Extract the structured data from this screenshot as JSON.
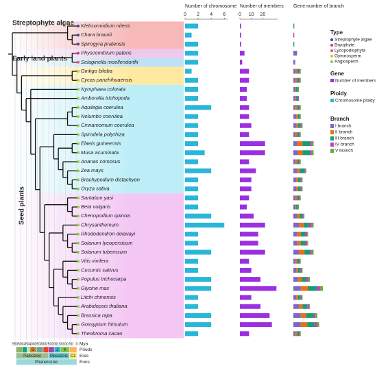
{
  "groups": [
    "Streptophyte algae",
    "Early land plants",
    "Seed plants"
  ],
  "type_legend": {
    "title": "Type",
    "items": [
      {
        "name": "Streptophyte algae",
        "color": "#3f3fa0"
      },
      {
        "name": "Bryophyte",
        "color": "#c0389c"
      },
      {
        "name": "Lycopodiophyta",
        "color": "#e8547a"
      },
      {
        "name": "Gymnosperm",
        "color": "#c8c828"
      },
      {
        "name": "Angiosperm",
        "color": "#8ccc3c"
      }
    ]
  },
  "species_type": [
    0,
    0,
    0,
    1,
    2,
    3,
    3,
    4,
    4,
    4,
    4,
    4,
    4,
    4,
    4,
    4,
    4,
    4,
    4,
    4,
    4,
    4,
    4,
    4,
    4,
    4,
    4,
    4,
    4,
    4,
    4,
    4,
    4,
    4,
    4
  ],
  "chart_data": [
    {
      "type": "bar",
      "title": "Number of chromosome",
      "legend_title": "Ploidy",
      "legend_label": "Chromosome ploidy",
      "color": "#29b6d8",
      "categories": [
        "Klebsormidium nitens",
        "Chara braunii",
        "Spirogyra pratensis",
        "Physcomitrium patens",
        "Selaginella moellendorffii",
        "Ginkgo biloba",
        "Cycas panzhihuaensis",
        "Nymphaea colorata",
        "Amborella trichopoda",
        "Aquilegia coerulea",
        "Nelumbo coerulea",
        "Cinnamomum coerulea",
        "Spirodela polyrhiza",
        "Elaeis guineensis",
        "Musa acuminata",
        "Ananas comosus",
        "Zea mays",
        "Brachypodium distachyon",
        "Oryza sativa",
        "Santalum yasi",
        "Beta vulgaris",
        "Chenopodium quinoa",
        "Chrysanthemum",
        "Rhododendron delavayi",
        "Solanum lycopersicum",
        "Solanum tuberosum",
        "Vitis vinifera",
        "Cucumis sativus",
        "Populus trichocarpa",
        "Glycine max",
        "Litchi chinensis",
        "Arabidopsis thaliana",
        "Brassica rapa",
        "Gossypium hirsutum",
        "Theobroma cacao"
      ],
      "values": [
        2,
        1,
        2,
        2,
        2,
        1,
        2,
        2,
        2,
        4,
        2,
        2,
        2,
        2,
        3,
        2,
        4,
        2,
        2,
        2,
        2,
        4,
        6,
        2,
        2,
        4,
        2,
        2,
        4,
        4,
        2,
        2,
        4,
        4,
        2
      ],
      "xlim": [
        0,
        6.5
      ],
      "xticks": [
        0,
        2,
        4,
        6
      ]
    },
    {
      "type": "bar",
      "title": "Number of members",
      "legend_title": "Gene",
      "legend_label": "Number of members",
      "color": "#9b30e0",
      "values": [
        1,
        1,
        1,
        4,
        2,
        8,
        8,
        6,
        6,
        8,
        8,
        10,
        8,
        22,
        22,
        8,
        14,
        10,
        10,
        8,
        6,
        12,
        22,
        16,
        16,
        22,
        8,
        10,
        18,
        32,
        10,
        18,
        26,
        28,
        8
      ],
      "xlim": [
        0,
        33
      ],
      "xticks": [
        0,
        10,
        20
      ]
    },
    {
      "type": "stacked_bar",
      "title": "Gene number of branch",
      "legend_title": "Branch",
      "xlim": [
        0,
        35
      ],
      "series": [
        {
          "name": "I branch",
          "color": "#7b68c8",
          "values": [
            0,
            0,
            0,
            4,
            2,
            2,
            2,
            2,
            2,
            2,
            3,
            3,
            2,
            4,
            5,
            2,
            4,
            3,
            3,
            2,
            2,
            4,
            6,
            4,
            4,
            6,
            2,
            3,
            5,
            8,
            3,
            6,
            8,
            8,
            2
          ]
        },
        {
          "name": "II branch",
          "color": "#e8701a",
          "values": [
            0,
            0,
            0,
            0,
            0,
            2,
            2,
            1,
            1,
            2,
            2,
            2,
            2,
            6,
            5,
            2,
            3,
            2,
            2,
            2,
            1,
            3,
            5,
            4,
            4,
            6,
            2,
            2,
            4,
            8,
            2,
            4,
            6,
            7,
            2
          ]
        },
        {
          "name": "III branch",
          "color": "#1a9c72",
          "values": [
            1,
            0,
            1,
            0,
            0,
            2,
            2,
            2,
            2,
            2,
            2,
            3,
            2,
            8,
            8,
            2,
            5,
            3,
            3,
            2,
            2,
            3,
            6,
            5,
            5,
            6,
            2,
            3,
            5,
            10,
            3,
            5,
            8,
            8,
            2
          ]
        },
        {
          "name": "IV branch",
          "color": "#c040c0",
          "values": [
            0,
            1,
            0,
            0,
            0,
            1,
            1,
            0,
            1,
            1,
            0,
            1,
            1,
            2,
            2,
            1,
            1,
            1,
            1,
            1,
            0,
            1,
            3,
            2,
            2,
            2,
            1,
            1,
            2,
            3,
            1,
            2,
            2,
            3,
            1
          ]
        },
        {
          "name": "V branch",
          "color": "#6aaa3a",
          "values": [
            0,
            0,
            0,
            0,
            0,
            1,
            1,
            1,
            0,
            1,
            1,
            1,
            1,
            2,
            2,
            1,
            1,
            1,
            1,
            1,
            1,
            1,
            2,
            1,
            1,
            2,
            1,
            1,
            2,
            3,
            1,
            1,
            2,
            2,
            1
          ]
        }
      ]
    },
    {
      "type": "timescale",
      "xlabel": "Mya",
      "xlim": [
        550,
        0
      ],
      "xticks": [
        550,
        500,
        450,
        400,
        350,
        300,
        250,
        200,
        150,
        100,
        50,
        0
      ],
      "row_labels": [
        "Priods",
        "Eras",
        "Eons"
      ],
      "periods": [
        {
          "label": null,
          "start": 541,
          "end": 485,
          "color": "#8fb06a"
        },
        {
          "label": null,
          "start": 485,
          "end": 444,
          "color": "#1aa07a"
        },
        {
          "label": null,
          "start": 444,
          "end": 419,
          "color": "#b3e1b6"
        },
        {
          "label": "D",
          "start": 419,
          "end": 359,
          "color": "#cb8c37"
        },
        {
          "label": null,
          "start": 359,
          "end": 299,
          "color": "#67a599"
        },
        {
          "label": null,
          "start": 299,
          "end": 252,
          "color": "#f04028"
        },
        {
          "label": null,
          "start": 252,
          "end": 201,
          "color": "#9b4aa8"
        },
        {
          "label": "J",
          "start": 201,
          "end": 145,
          "color": "#34b2c9"
        },
        {
          "label": "K",
          "start": 145,
          "end": 66,
          "color": "#7fc64e"
        },
        {
          "label": null,
          "start": 66,
          "end": 0,
          "color": "#fdb462"
        }
      ],
      "eras": [
        {
          "label": "Paleozoic",
          "start": 541,
          "end": 252,
          "color": "#99c08d"
        },
        {
          "label": "MesoZoic",
          "start": 252,
          "end": 66,
          "color": "#67c5ca"
        },
        {
          "label": "Cz",
          "start": 66,
          "end": 0,
          "color": "#f2e96a"
        }
      ],
      "eons": [
        {
          "label": "Phanerozoic",
          "start": 541,
          "end": 0,
          "color": "#9ad9dd"
        }
      ]
    }
  ]
}
